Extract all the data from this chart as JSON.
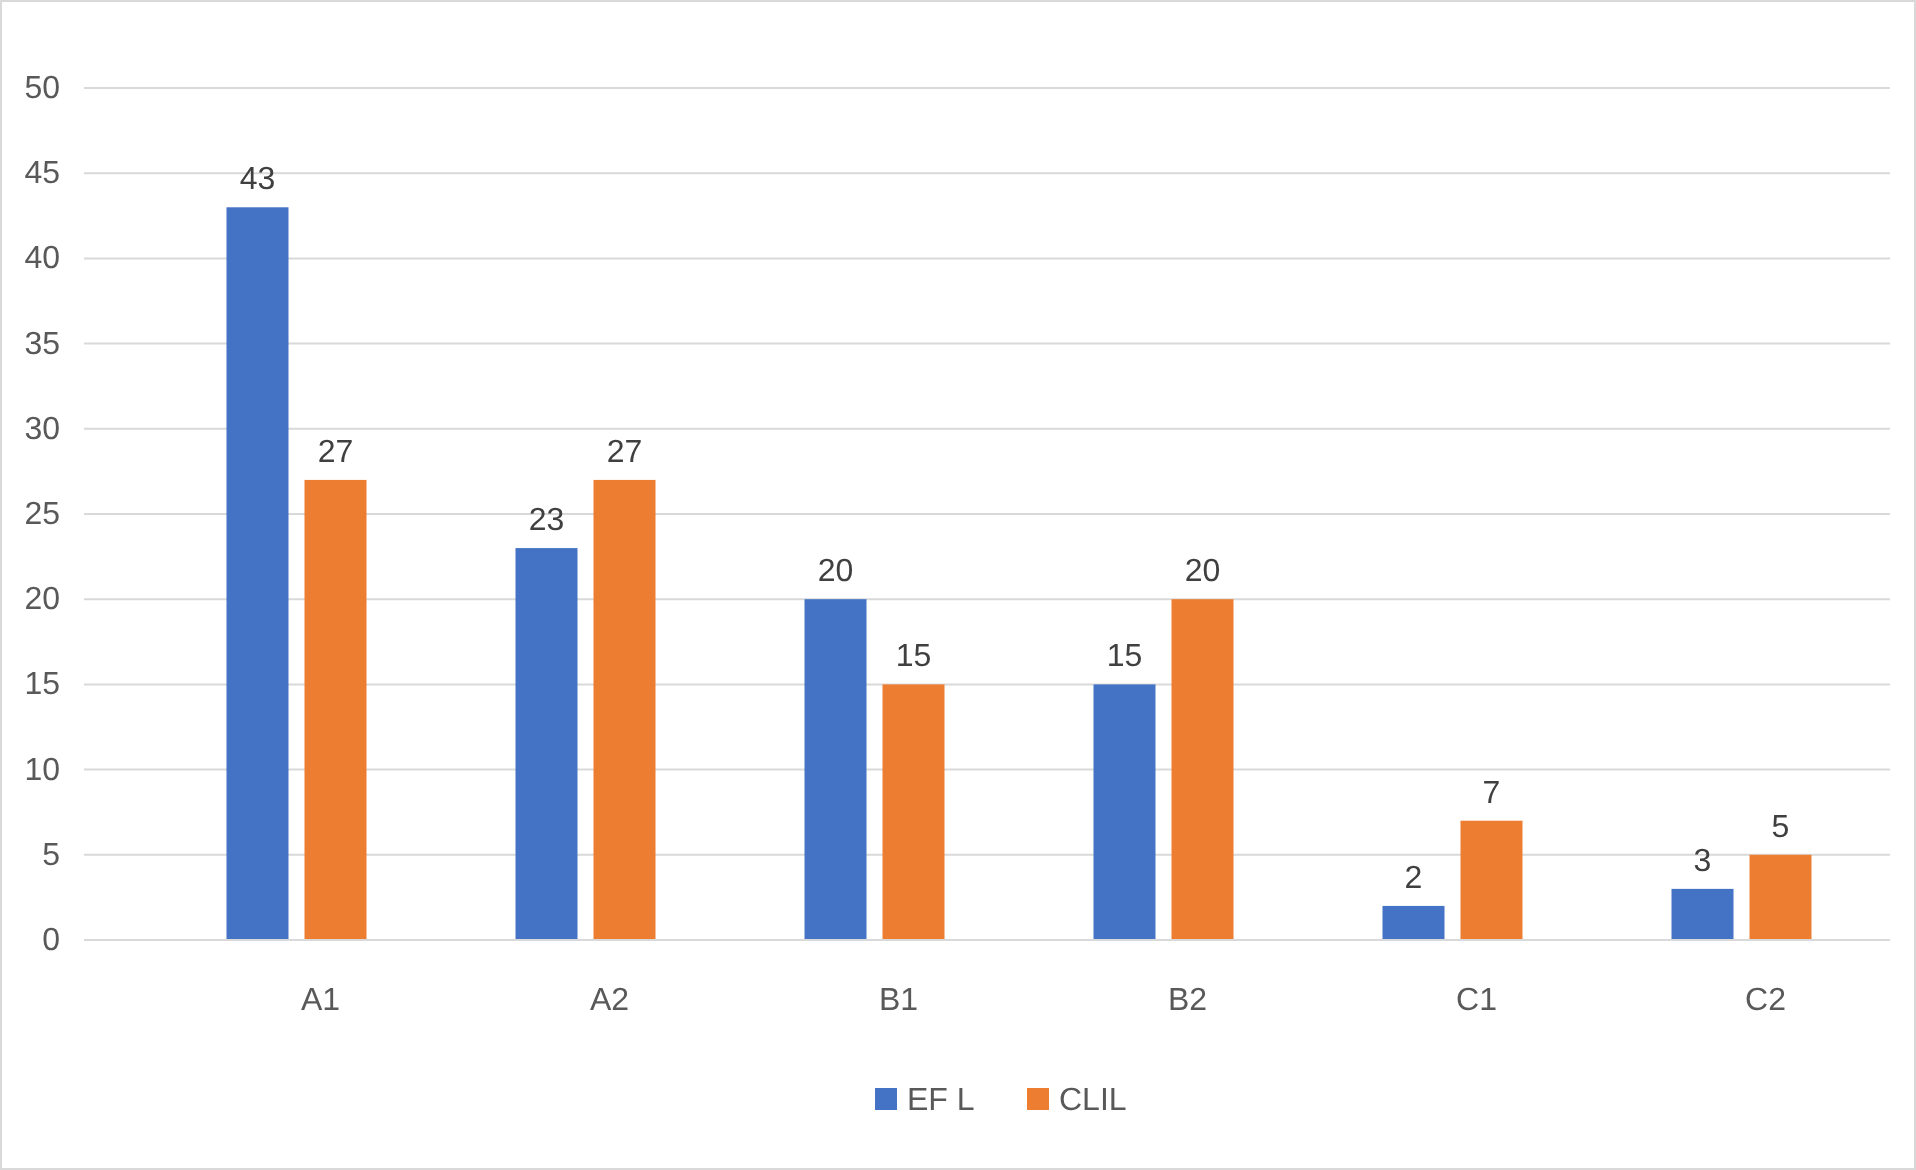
{
  "chart_data": {
    "type": "bar",
    "categories": [
      "A1",
      "A2",
      "B1",
      "B2",
      "C1",
      "C2"
    ],
    "series": [
      {
        "name": "EF L",
        "color": "#4472c4",
        "values": [
          43,
          23,
          20,
          15,
          2,
          3
        ]
      },
      {
        "name": "CLIL",
        "color": "#ed7d31",
        "values": [
          27,
          27,
          15,
          20,
          7,
          5
        ]
      }
    ],
    "ylim": [
      0,
      50
    ],
    "yticks": [
      0,
      5,
      10,
      15,
      20,
      25,
      30,
      35,
      40,
      45,
      50
    ],
    "grid": "y",
    "data_labels": true,
    "legend": "bottom"
  }
}
